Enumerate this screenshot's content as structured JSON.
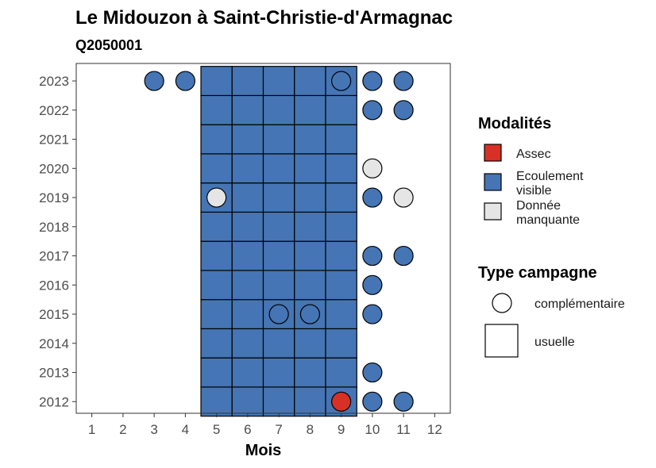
{
  "chart_data": {
    "type": "heatmap",
    "title": "Le Midouzon à Saint-Christie-d'Armagnac",
    "subtitle": "Q2050001",
    "xlabel": "Mois",
    "ylabel": "",
    "x_ticks": [
      "1",
      "2",
      "3",
      "4",
      "5",
      "6",
      "7",
      "8",
      "9",
      "10",
      "11",
      "12"
    ],
    "y_ticks": [
      "2012",
      "2013",
      "2014",
      "2015",
      "2016",
      "2017",
      "2018",
      "2019",
      "2020",
      "2021",
      "2022",
      "2023"
    ],
    "xlim": [
      0.5,
      12.5
    ],
    "ylim": [
      2011.6,
      2023.6
    ],
    "colors": {
      "Assec": "#d73027",
      "Ecoulement visible": "#4575b4",
      "Donnée manquante": "#e5e5e5"
    },
    "legend_modalites": {
      "title": "Modalités",
      "items": [
        {
          "key": "Assec",
          "lines": [
            "Assec"
          ]
        },
        {
          "key": "Ecoulement visible",
          "lines": [
            "Ecoulement",
            "visible"
          ]
        },
        {
          "key": "Donnée manquante",
          "lines": [
            "Donnée",
            "manquante"
          ]
        }
      ]
    },
    "legend_type": {
      "title": "Type campagne",
      "items": [
        {
          "shape": "circle",
          "label": "complémentaire"
        },
        {
          "shape": "square",
          "label": "usuelle"
        }
      ]
    },
    "usuelle": [
      {
        "year": 2012,
        "month": 5,
        "modalite": "Ecoulement visible"
      },
      {
        "year": 2012,
        "month": 6,
        "modalite": "Ecoulement visible"
      },
      {
        "year": 2012,
        "month": 7,
        "modalite": "Ecoulement visible"
      },
      {
        "year": 2012,
        "month": 8,
        "modalite": "Ecoulement visible"
      },
      {
        "year": 2012,
        "month": 9,
        "modalite": "Ecoulement visible"
      },
      {
        "year": 2013,
        "month": 5,
        "modalite": "Ecoulement visible"
      },
      {
        "year": 2013,
        "month": 6,
        "modalite": "Ecoulement visible"
      },
      {
        "year": 2013,
        "month": 7,
        "modalite": "Ecoulement visible"
      },
      {
        "year": 2013,
        "month": 8,
        "modalite": "Ecoulement visible"
      },
      {
        "year": 2013,
        "month": 9,
        "modalite": "Ecoulement visible"
      },
      {
        "year": 2014,
        "month": 5,
        "modalite": "Ecoulement visible"
      },
      {
        "year": 2014,
        "month": 6,
        "modalite": "Ecoulement visible"
      },
      {
        "year": 2014,
        "month": 7,
        "modalite": "Ecoulement visible"
      },
      {
        "year": 2014,
        "month": 8,
        "modalite": "Ecoulement visible"
      },
      {
        "year": 2014,
        "month": 9,
        "modalite": "Ecoulement visible"
      },
      {
        "year": 2015,
        "month": 5,
        "modalite": "Ecoulement visible"
      },
      {
        "year": 2015,
        "month": 6,
        "modalite": "Ecoulement visible"
      },
      {
        "year": 2015,
        "month": 7,
        "modalite": "Ecoulement visible"
      },
      {
        "year": 2015,
        "month": 8,
        "modalite": "Ecoulement visible"
      },
      {
        "year": 2015,
        "month": 9,
        "modalite": "Ecoulement visible"
      },
      {
        "year": 2016,
        "month": 5,
        "modalite": "Ecoulement visible"
      },
      {
        "year": 2016,
        "month": 6,
        "modalite": "Ecoulement visible"
      },
      {
        "year": 2016,
        "month": 7,
        "modalite": "Ecoulement visible"
      },
      {
        "year": 2016,
        "month": 8,
        "modalite": "Ecoulement visible"
      },
      {
        "year": 2016,
        "month": 9,
        "modalite": "Ecoulement visible"
      },
      {
        "year": 2017,
        "month": 5,
        "modalite": "Ecoulement visible"
      },
      {
        "year": 2017,
        "month": 6,
        "modalite": "Ecoulement visible"
      },
      {
        "year": 2017,
        "month": 7,
        "modalite": "Ecoulement visible"
      },
      {
        "year": 2017,
        "month": 8,
        "modalite": "Ecoulement visible"
      },
      {
        "year": 2017,
        "month": 9,
        "modalite": "Ecoulement visible"
      },
      {
        "year": 2018,
        "month": 5,
        "modalite": "Ecoulement visible"
      },
      {
        "year": 2018,
        "month": 6,
        "modalite": "Ecoulement visible"
      },
      {
        "year": 2018,
        "month": 7,
        "modalite": "Ecoulement visible"
      },
      {
        "year": 2018,
        "month": 8,
        "modalite": "Ecoulement visible"
      },
      {
        "year": 2018,
        "month": 9,
        "modalite": "Ecoulement visible"
      },
      {
        "year": 2019,
        "month": 5,
        "modalite": "Ecoulement visible"
      },
      {
        "year": 2019,
        "month": 6,
        "modalite": "Ecoulement visible"
      },
      {
        "year": 2019,
        "month": 7,
        "modalite": "Ecoulement visible"
      },
      {
        "year": 2019,
        "month": 8,
        "modalite": "Ecoulement visible"
      },
      {
        "year": 2019,
        "month": 9,
        "modalite": "Ecoulement visible"
      },
      {
        "year": 2020,
        "month": 5,
        "modalite": "Ecoulement visible"
      },
      {
        "year": 2020,
        "month": 6,
        "modalite": "Ecoulement visible"
      },
      {
        "year": 2020,
        "month": 7,
        "modalite": "Ecoulement visible"
      },
      {
        "year": 2020,
        "month": 8,
        "modalite": "Ecoulement visible"
      },
      {
        "year": 2020,
        "month": 9,
        "modalite": "Ecoulement visible"
      },
      {
        "year": 2021,
        "month": 5,
        "modalite": "Ecoulement visible"
      },
      {
        "year": 2021,
        "month": 6,
        "modalite": "Ecoulement visible"
      },
      {
        "year": 2021,
        "month": 7,
        "modalite": "Ecoulement visible"
      },
      {
        "year": 2021,
        "month": 8,
        "modalite": "Ecoulement visible"
      },
      {
        "year": 2021,
        "month": 9,
        "modalite": "Ecoulement visible"
      },
      {
        "year": 2022,
        "month": 5,
        "modalite": "Ecoulement visible"
      },
      {
        "year": 2022,
        "month": 6,
        "modalite": "Ecoulement visible"
      },
      {
        "year": 2022,
        "month": 7,
        "modalite": "Ecoulement visible"
      },
      {
        "year": 2022,
        "month": 8,
        "modalite": "Ecoulement visible"
      },
      {
        "year": 2022,
        "month": 9,
        "modalite": "Ecoulement visible"
      },
      {
        "year": 2023,
        "month": 5,
        "modalite": "Ecoulement visible"
      },
      {
        "year": 2023,
        "month": 6,
        "modalite": "Ecoulement visible"
      },
      {
        "year": 2023,
        "month": 7,
        "modalite": "Ecoulement visible"
      },
      {
        "year": 2023,
        "month": 8,
        "modalite": "Ecoulement visible"
      },
      {
        "year": 2023,
        "month": 9,
        "modalite": "Ecoulement visible"
      }
    ],
    "complementaire": [
      {
        "year": 2023,
        "month": 3,
        "modalite": "Ecoulement visible"
      },
      {
        "year": 2023,
        "month": 4,
        "modalite": "Ecoulement visible"
      },
      {
        "year": 2023,
        "month": 9,
        "modalite": "Ecoulement visible"
      },
      {
        "year": 2023,
        "month": 10,
        "modalite": "Ecoulement visible"
      },
      {
        "year": 2023,
        "month": 11,
        "modalite": "Ecoulement visible"
      },
      {
        "year": 2022,
        "month": 10,
        "modalite": "Ecoulement visible"
      },
      {
        "year": 2022,
        "month": 11,
        "modalite": "Ecoulement visible"
      },
      {
        "year": 2020,
        "month": 10,
        "modalite": "Donnée manquante"
      },
      {
        "year": 2019,
        "month": 5,
        "modalite": "Donnée manquante"
      },
      {
        "year": 2019,
        "month": 10,
        "modalite": "Ecoulement visible"
      },
      {
        "year": 2019,
        "month": 11,
        "modalite": "Donnée manquante"
      },
      {
        "year": 2017,
        "month": 10,
        "modalite": "Ecoulement visible"
      },
      {
        "year": 2017,
        "month": 11,
        "modalite": "Ecoulement visible"
      },
      {
        "year": 2016,
        "month": 10,
        "modalite": "Ecoulement visible"
      },
      {
        "year": 2015,
        "month": 7,
        "modalite": "Ecoulement visible"
      },
      {
        "year": 2015,
        "month": 8,
        "modalite": "Ecoulement visible"
      },
      {
        "year": 2015,
        "month": 10,
        "modalite": "Ecoulement visible"
      },
      {
        "year": 2013,
        "month": 10,
        "modalite": "Ecoulement visible"
      },
      {
        "year": 2012,
        "month": 9,
        "modalite": "Assec"
      },
      {
        "year": 2012,
        "month": 10,
        "modalite": "Ecoulement visible"
      },
      {
        "year": 2012,
        "month": 11,
        "modalite": "Ecoulement visible"
      }
    ]
  }
}
